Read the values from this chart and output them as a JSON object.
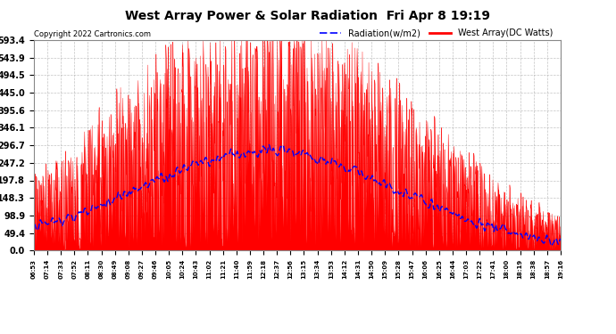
{
  "title": "West Array Power & Solar Radiation  Fri Apr 8 19:19",
  "copyright": "Copyright 2022 Cartronics.com",
  "legend_radiation": "Radiation(w/m2)",
  "legend_west": "West Array(DC Watts)",
  "ymax": 593.4,
  "ymin": 0.0,
  "yticks": [
    0.0,
    49.4,
    98.9,
    148.3,
    197.8,
    247.2,
    296.7,
    346.1,
    395.6,
    445.0,
    494.5,
    543.9,
    593.4
  ],
  "ytick_labels": [
    "0.0",
    "49.4",
    "98.9",
    "148.3",
    "197.8",
    "247.2",
    "296.7",
    "346.1",
    "395.6",
    "445.0",
    "494.5",
    "543.9",
    "593.4"
  ],
  "xtick_labels": [
    "06:53",
    "07:14",
    "07:33",
    "07:52",
    "08:11",
    "08:30",
    "08:49",
    "09:08",
    "09:27",
    "09:46",
    "10:05",
    "10:24",
    "10:43",
    "11:02",
    "11:21",
    "11:40",
    "11:59",
    "12:18",
    "12:37",
    "12:56",
    "13:15",
    "13:34",
    "13:53",
    "14:12",
    "14:31",
    "14:50",
    "15:09",
    "15:28",
    "15:47",
    "16:06",
    "16:25",
    "16:44",
    "17:03",
    "17:22",
    "17:41",
    "18:00",
    "18:19",
    "18:38",
    "18:57",
    "19:16"
  ],
  "background_color": "#ffffff",
  "plot_bg_color": "#ffffff",
  "grid_color": "#aaaaaa",
  "radiation_color": "#0000ff",
  "west_color": "#ff0000",
  "title_color": "#000000",
  "copyright_color": "#000000",
  "title_fontsize": 10,
  "copyright_fontsize": 6,
  "ytick_fontsize": 7,
  "xtick_fontsize": 5,
  "legend_fontsize": 7
}
